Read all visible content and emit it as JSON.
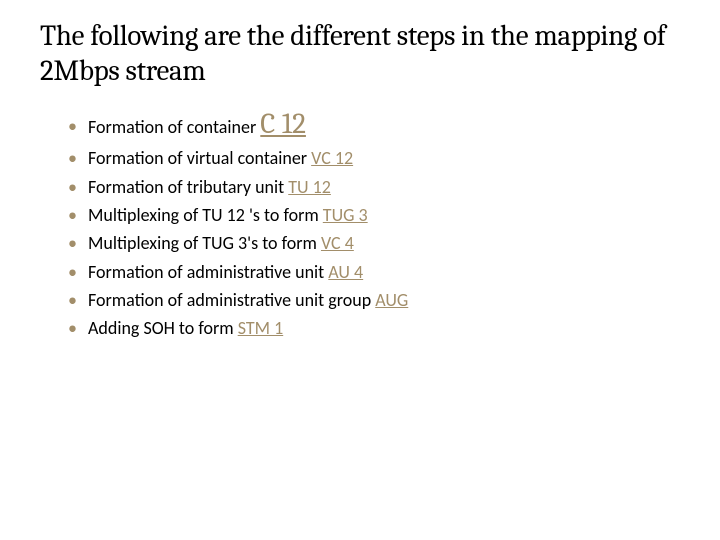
{
  "title": "The following are the different steps in the mapping of 2Mbps stream",
  "items": [
    {
      "pre": "Formation of container ",
      "emph": "C 12",
      "big": true
    },
    {
      "pre": "Formation of virtual container ",
      "emph": "VC 12"
    },
    {
      "pre": "Formation of tributary unit  ",
      "emph": "TU 12"
    },
    {
      "pre": "Multiplexing of TU 12 's to form ",
      "emph": "TUG 3"
    },
    {
      "pre": "Multiplexing of TUG 3's to form ",
      "emph": "VC 4"
    },
    {
      "pre": "Formation of administrative unit  ",
      "emph": "AU 4"
    },
    {
      "pre": "Formation of administrative unit group  ",
      "emph": "AUG"
    },
    {
      "pre": "Adding SOH to form ",
      "emph": "STM 1"
    }
  ],
  "colors": {
    "bullet": "#a28e6a",
    "emphasis": "#a28e6a",
    "text": "#000000",
    "background": "#ffffff"
  },
  "fonts": {
    "title_family": "Cambria",
    "body_family": "Calibri",
    "title_size_pt": 22,
    "body_size_pt": 14,
    "emph_big_size_pt": 22
  }
}
